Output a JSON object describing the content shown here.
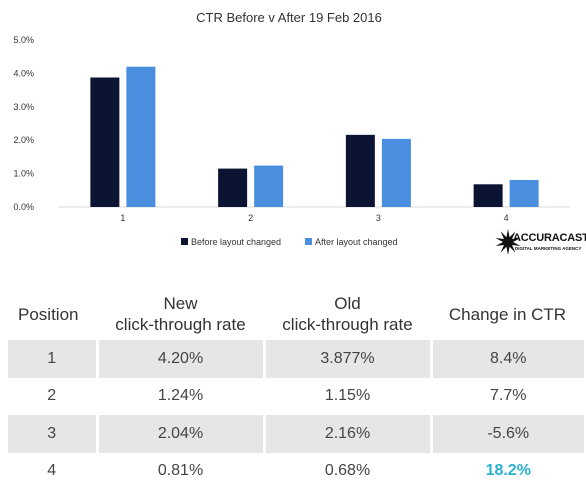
{
  "chart_data": {
    "type": "bar",
    "title": "CTR Before v After 19 Feb 2016",
    "categories": [
      "1",
      "2",
      "3",
      "4"
    ],
    "series": [
      {
        "name": "Before layout changed",
        "color": "#0c1433",
        "values": [
          3.877,
          1.15,
          2.16,
          0.68
        ]
      },
      {
        "name": "After layout changed",
        "color": "#4a8ee0",
        "values": [
          4.2,
          1.24,
          2.04,
          0.81
        ]
      }
    ],
    "yticks": [
      "0.0%",
      "1.0%",
      "2.0%",
      "3.0%",
      "4.0%",
      "5.0%"
    ],
    "ylim": [
      0,
      5
    ],
    "xlabel": "",
    "ylabel": "",
    "grid": false,
    "legend_position": "bottom"
  },
  "logo": {
    "name": "ACCURACAST",
    "tagline": "DIGITAL MARKETING AGENCY"
  },
  "table": {
    "headers": {
      "position": "Position",
      "new_line1": "New",
      "new_line2": "click-through rate",
      "old_line1": "Old",
      "old_line2": "click-through rate",
      "change": "Change in CTR"
    },
    "rows": [
      {
        "position": "1",
        "new": "4.20%",
        "old": "3.877%",
        "change": "8.4%"
      },
      {
        "position": "2",
        "new": "1.24%",
        "old": "1.15%",
        "change": "7.7%"
      },
      {
        "position": "3",
        "new": "2.04%",
        "old": "2.16%",
        "change": "-5.6%"
      },
      {
        "position": "4",
        "new": "0.81%",
        "old": "0.68%",
        "change": "18.2%"
      }
    ],
    "highlight_color": "#2ab0d0"
  }
}
